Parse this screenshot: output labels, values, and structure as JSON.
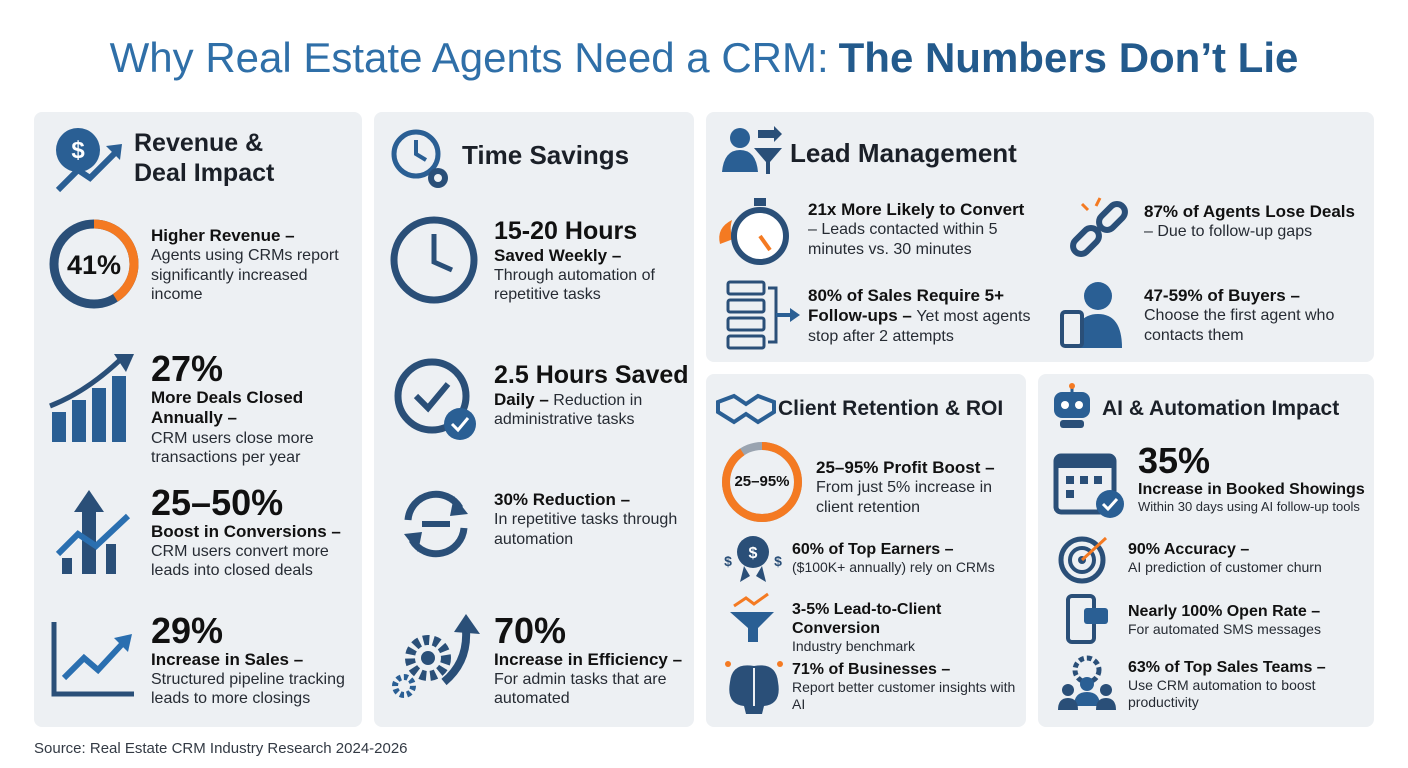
{
  "title": [
    "Why Real Estate Agents Need a CRM:",
    "The Numbers Don’t Lie"
  ],
  "panels": [
    {
      "title": "Revenue & Deal Impact",
      "items": [
        {
          "stat": "41%",
          "bold": "Higher Revenue –",
          "text": "Agents using CRMs report significantly increased income"
        },
        {
          "stat": "27%",
          "bold": "More Deals Closed Annually –",
          "text": "CRM users close more transactions per year"
        },
        {
          "stat": "25–50%",
          "bold": "Boost in Conversions –",
          "text": "CRM users convert more leads into closed deals"
        },
        {
          "stat": "29%",
          "bold": "Increase in Sales –",
          "text": "Structured pipeline tracking leads to more closings"
        }
      ]
    },
    {
      "title": "Time Savings",
      "items": [
        {
          "stat": "15-20 Hours",
          "bold": "Saved Weekly –",
          "text": "Through automation of repetitive tasks"
        },
        {
          "stat": "2.5 Hours Saved",
          "bold": "Daily –",
          "text": "Reduction in administrative tasks"
        },
        {
          "bold": "30% Reduction –",
          "text": "In repetitive tasks through automation"
        },
        {
          "stat": "70%",
          "bold": "Increase in Efficiency –",
          "text": "For admin tasks that are automated"
        }
      ]
    },
    {
      "title": "Lead Management",
      "items": [
        {
          "bold": "21x More Likely to Convert",
          "text": "– Leads contacted within 5 minutes vs. 30 minutes"
        },
        {
          "bold": "87% of Agents Lose Deals",
          "text": "– Due to follow-up gaps"
        },
        {
          "bold": "80% of Sales Require 5+ Follow-ups –",
          "text": "Yet most agents stop after 2 attempts"
        },
        {
          "bold": "47-59% of Buyers –",
          "text": "Choose the first agent who contacts them"
        }
      ]
    },
    {
      "title": "Client Retention & ROI",
      "items": [
        {
          "stat": "25–95%",
          "bold": "25–95% Profit Boost –",
          "text": "From just 5% increase in client retention"
        },
        {
          "bold": "60% of Top Earners –",
          "text": "($100K+ annually) rely on CRMs"
        },
        {
          "bold": "3-5% Lead-to-Client Conversion",
          "text": "Industry benchmark"
        },
        {
          "bold": "71% of Businesses –",
          "text": "Report better customer insights with AI"
        }
      ]
    },
    {
      "title": "AI & Automation Impact",
      "items": [
        {
          "stat": "35%",
          "bold": "Increase in Booked Showings",
          "text": "Within 30 days using AI follow-up tools"
        },
        {
          "bold": "90% Accuracy –",
          "text": "AI prediction of customer churn"
        },
        {
          "bold": "Nearly 100% Open Rate –",
          "text": "For automated SMS messages"
        },
        {
          "bold": "63% of Top Sales Teams –",
          "text": "Use CRM automation to boost productivity"
        }
      ]
    }
  ],
  "source": "Source: Real Estate CRM Industry Research 2024-2026"
}
